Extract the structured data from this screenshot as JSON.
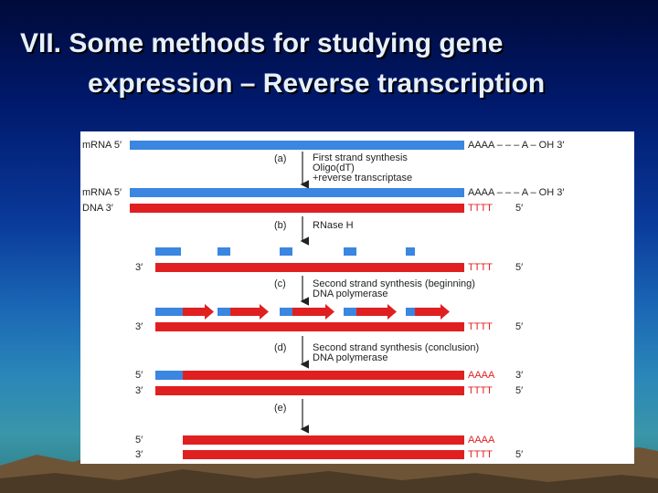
{
  "slide": {
    "title_line1": "VII. Some methods for studying gene",
    "title_line2": "expression – Reverse transcription"
  },
  "figure": {
    "colors": {
      "rna": "#3a86e0",
      "dna": "#e02020",
      "text": "#222222"
    },
    "rows": {
      "mrna1_left": "mRNA 5′",
      "mrna1_right": "AAAA – – – A – OH 3′",
      "mrna2_left": "mRNA 5′",
      "mrna2_right": "AAAA – – – A – OH 3′",
      "dna1_left": "DNA 3′",
      "dna1_right": "TTTT",
      "dna1_right5": "5′",
      "frag_left": "3′",
      "frag_right": "TTTT",
      "frag_right5": "5′",
      "c_left": "3′",
      "c_right": "TTTT",
      "c_right5": "5′",
      "d1_left": "5′",
      "d1_right": "AAAA",
      "d1_right3": "3′",
      "d2_left": "3′",
      "d2_right": "TTTT",
      "d2_right5": "5′",
      "e1_left": "5′",
      "e1_right": "AAAA",
      "e2_left": "3′",
      "e2_right": "TTTT",
      "e2_right5": "5′"
    },
    "steps": {
      "a_letter": "(a)",
      "a_line1": "First strand synthesis",
      "a_line2": "Oligo(dT)",
      "a_line3": "+reverse transcriptase",
      "b_letter": "(b)",
      "b_line1": "RNase H",
      "c_letter": "(c)",
      "c_line1": "Second strand synthesis (beginning)",
      "c_line2": "DNA polymerase",
      "d_letter": "(d)",
      "d_line1": "Second strand synthesis (conclusion)",
      "d_line2": "DNA polymerase",
      "e_letter": "(e)"
    }
  }
}
